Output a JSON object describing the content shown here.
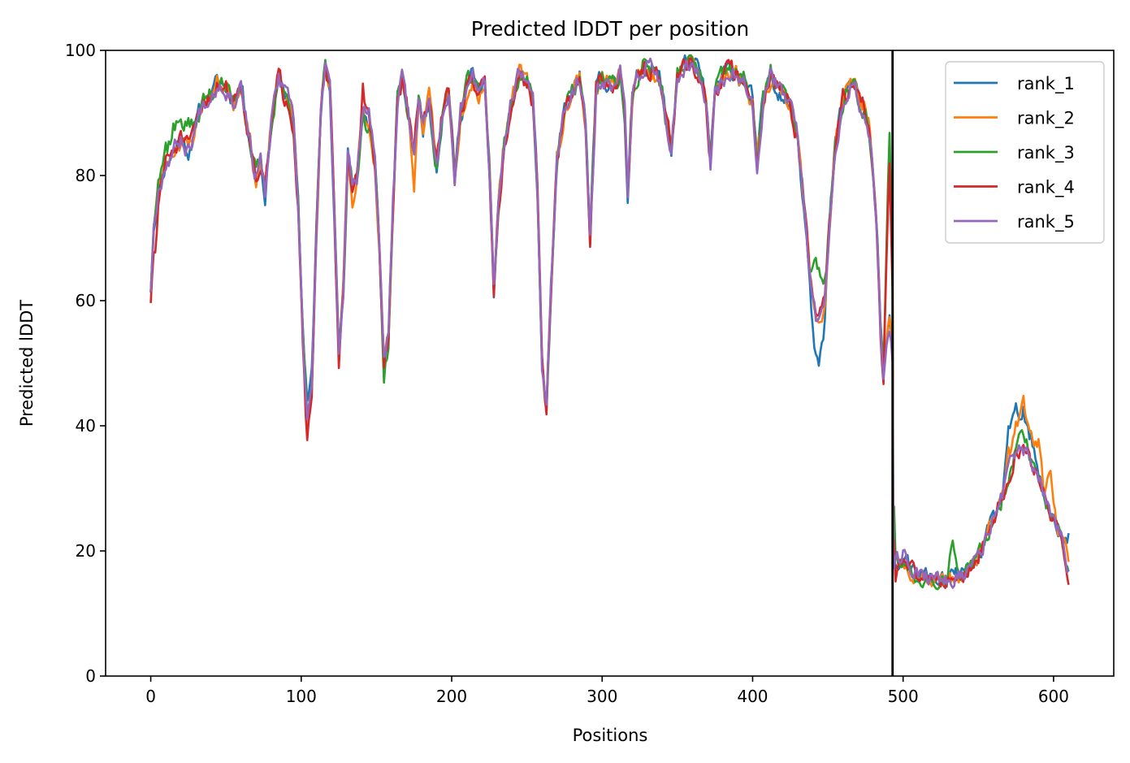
{
  "chart_data": {
    "type": "line",
    "title": "Predicted lDDT per position",
    "xlabel": "Positions",
    "ylabel": "Predicted lDDT",
    "xlim": [
      -30,
      640
    ],
    "ylim": [
      0,
      100
    ],
    "xticks": [
      0,
      100,
      200,
      300,
      400,
      500,
      600
    ],
    "yticks": [
      0,
      20,
      40,
      60,
      80,
      100
    ],
    "grid": false,
    "legend_position": "top-right",
    "vline_x": 493,
    "colors": {
      "rank_1": "#1f77b4",
      "rank_2": "#ff7f0e",
      "rank_3": "#2ca02c",
      "rank_4": "#d62728",
      "rank_5": "#9467bd",
      "vline": "#000000"
    },
    "base_profile": [
      [
        0,
        62
      ],
      [
        2,
        72
      ],
      [
        5,
        78
      ],
      [
        10,
        82
      ],
      [
        15,
        84
      ],
      [
        20,
        86
      ],
      [
        25,
        84
      ],
      [
        30,
        88
      ],
      [
        35,
        92
      ],
      [
        40,
        93
      ],
      [
        45,
        95
      ],
      [
        50,
        94
      ],
      [
        55,
        92
      ],
      [
        60,
        95
      ],
      [
        63,
        90
      ],
      [
        67,
        84
      ],
      [
        70,
        80
      ],
      [
        73,
        82
      ],
      [
        76,
        77
      ],
      [
        80,
        88
      ],
      [
        85,
        96
      ],
      [
        88,
        93
      ],
      [
        92,
        92
      ],
      [
        95,
        88
      ],
      [
        98,
        75
      ],
      [
        101,
        55
      ],
      [
        104,
        40
      ],
      [
        107,
        46
      ],
      [
        110,
        70
      ],
      [
        113,
        90
      ],
      [
        116,
        97
      ],
      [
        119,
        94
      ],
      [
        122,
        75
      ],
      [
        125,
        52
      ],
      [
        128,
        62
      ],
      [
        131,
        83
      ],
      [
        134,
        78
      ],
      [
        137,
        80
      ],
      [
        141,
        90
      ],
      [
        145,
        88
      ],
      [
        149,
        82
      ],
      [
        152,
        68
      ],
      [
        155,
        50
      ],
      [
        158,
        54
      ],
      [
        161,
        75
      ],
      [
        164,
        92
      ],
      [
        167,
        95
      ],
      [
        171,
        90
      ],
      [
        175,
        84
      ],
      [
        178,
        92
      ],
      [
        181,
        88
      ],
      [
        185,
        92
      ],
      [
        190,
        82
      ],
      [
        194,
        90
      ],
      [
        198,
        94
      ],
      [
        202,
        80
      ],
      [
        206,
        90
      ],
      [
        210,
        94
      ],
      [
        214,
        96
      ],
      [
        218,
        93
      ],
      [
        222,
        95
      ],
      [
        225,
        82
      ],
      [
        228,
        62
      ],
      [
        231,
        74
      ],
      [
        235,
        85
      ],
      [
        240,
        92
      ],
      [
        245,
        96
      ],
      [
        250,
        95
      ],
      [
        254,
        92
      ],
      [
        257,
        78
      ],
      [
        260,
        50
      ],
      [
        263,
        43
      ],
      [
        266,
        62
      ],
      [
        270,
        82
      ],
      [
        275,
        90
      ],
      [
        280,
        93
      ],
      [
        285,
        96
      ],
      [
        289,
        88
      ],
      [
        292,
        70
      ],
      [
        296,
        94
      ],
      [
        300,
        96
      ],
      [
        304,
        95
      ],
      [
        308,
        94
      ],
      [
        312,
        96
      ],
      [
        315,
        90
      ],
      [
        317,
        77
      ],
      [
        320,
        92
      ],
      [
        324,
        96
      ],
      [
        328,
        98
      ],
      [
        334,
        97
      ],
      [
        339,
        95
      ],
      [
        343,
        88
      ],
      [
        346,
        84
      ],
      [
        350,
        96
      ],
      [
        355,
        98
      ],
      [
        360,
        98
      ],
      [
        365,
        96
      ],
      [
        369,
        92
      ],
      [
        372,
        82
      ],
      [
        375,
        93
      ],
      [
        380,
        96
      ],
      [
        385,
        97
      ],
      [
        390,
        96
      ],
      [
        395,
        95
      ],
      [
        400,
        92
      ],
      [
        403,
        82
      ],
      [
        407,
        92
      ],
      [
        412,
        96
      ],
      [
        417,
        94
      ],
      [
        421,
        93
      ],
      [
        425,
        91
      ],
      [
        428,
        88
      ],
      [
        430,
        86
      ],
      [
        433,
        78
      ],
      [
        436,
        70
      ],
      [
        439,
        62
      ],
      [
        442,
        58
      ],
      [
        445,
        58
      ],
      [
        448,
        60
      ],
      [
        451,
        72
      ],
      [
        455,
        85
      ],
      [
        460,
        92
      ],
      [
        464,
        94
      ],
      [
        468,
        95
      ],
      [
        471,
        92
      ],
      [
        474,
        91
      ],
      [
        477,
        88
      ],
      [
        480,
        80
      ],
      [
        483,
        68
      ],
      [
        485,
        55
      ],
      [
        487,
        48
      ],
      [
        489,
        55
      ],
      [
        491,
        58
      ],
      [
        492,
        55
      ],
      [
        493,
        52
      ],
      [
        494,
        19
      ],
      [
        497,
        18
      ],
      [
        501,
        18
      ],
      [
        505,
        17
      ],
      [
        510,
        16
      ],
      [
        515,
        16
      ],
      [
        520,
        15.5
      ],
      [
        525,
        15.5
      ],
      [
        530,
        15.5
      ],
      [
        535,
        16
      ],
      [
        540,
        16
      ],
      [
        545,
        17
      ],
      [
        550,
        19
      ],
      [
        555,
        22
      ],
      [
        560,
        25
      ],
      [
        565,
        28
      ],
      [
        570,
        32
      ],
      [
        575,
        36
      ],
      [
        580,
        38
      ],
      [
        585,
        36
      ],
      [
        590,
        32
      ],
      [
        595,
        28
      ],
      [
        600,
        25
      ],
      [
        605,
        22
      ],
      [
        610,
        17
      ]
    ],
    "series": [
      {
        "name": "rank_1",
        "seed": 11,
        "overrides": [
          [
            104,
            44
          ],
          [
            107,
            48
          ],
          [
            228,
            61.5
          ],
          [
            441,
            55
          ],
          [
            444,
            54
          ],
          [
            447,
            55
          ],
          [
            570,
            40
          ],
          [
            575,
            43
          ],
          [
            580,
            42
          ],
          [
            585,
            38
          ],
          [
            610,
            22
          ]
        ]
      },
      {
        "name": "rank_2",
        "seed": 23,
        "overrides": [
          [
            70,
            79
          ],
          [
            134,
            74
          ],
          [
            175,
            79
          ],
          [
            232,
            80
          ],
          [
            570,
            36
          ],
          [
            575,
            40
          ],
          [
            580,
            44
          ],
          [
            585,
            40
          ],
          [
            590,
            37
          ],
          [
            598,
            33
          ],
          [
            610,
            19
          ]
        ]
      },
      {
        "name": "rank_3",
        "seed": 37,
        "overrides": [
          [
            0,
            62
          ],
          [
            5,
            81
          ],
          [
            10,
            85
          ],
          [
            15,
            88
          ],
          [
            20,
            90
          ],
          [
            25,
            89
          ],
          [
            155,
            48
          ],
          [
            190,
            81
          ],
          [
            442,
            65
          ],
          [
            445,
            62
          ],
          [
            448,
            63
          ],
          [
            491,
            88
          ],
          [
            533,
            23
          ],
          [
            575,
            37
          ],
          [
            580,
            39
          ],
          [
            585,
            35
          ],
          [
            610,
            16
          ]
        ]
      },
      {
        "name": "rank_4",
        "seed": 51,
        "overrides": [
          [
            3,
            67
          ],
          [
            104,
            37.5
          ],
          [
            107,
            45
          ],
          [
            125,
            48
          ],
          [
            141,
            94
          ],
          [
            228,
            62
          ],
          [
            263,
            43
          ],
          [
            292,
            69
          ],
          [
            491,
            82
          ],
          [
            494,
            15
          ],
          [
            570,
            30
          ],
          [
            575,
            35
          ],
          [
            580,
            37
          ],
          [
            585,
            34
          ],
          [
            610,
            15
          ]
        ]
      },
      {
        "name": "rank_5",
        "seed": 67,
        "overrides": [
          [
            141,
            92
          ],
          [
            145,
            91
          ],
          [
            442,
            57
          ],
          [
            445,
            57
          ],
          [
            487,
            47
          ],
          [
            491,
            55
          ],
          [
            497,
            19
          ],
          [
            501,
            20
          ],
          [
            570,
            34
          ],
          [
            575,
            35
          ],
          [
            580,
            36
          ],
          [
            585,
            33
          ],
          [
            610,
            17
          ]
        ]
      }
    ]
  }
}
